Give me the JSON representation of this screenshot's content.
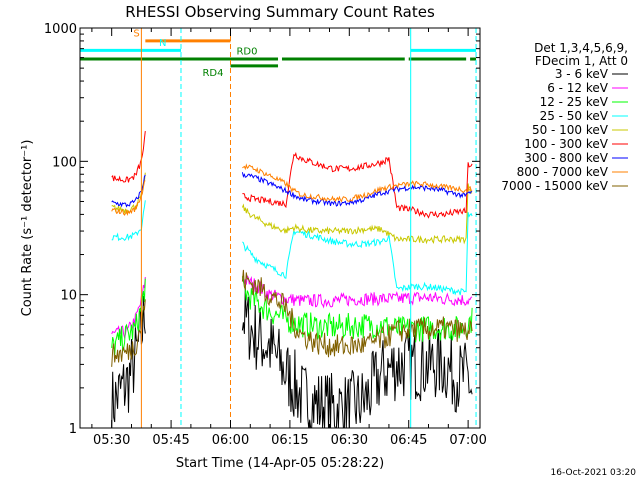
{
  "chart_data": {
    "type": "line",
    "title": "RHESSI Observing Summary Count Rates",
    "xlabel": "Start Time (14-Apr-05 05:28:22)",
    "ylabel": "Count Rate (s⁻¹ detector⁻¹)",
    "yscale": "log",
    "ylim": [
      1,
      1000
    ],
    "xlim_minutes": [
      -8,
      93
    ],
    "x_ticks": [
      {
        "label": "05:30",
        "value": 0
      },
      {
        "label": "05:45",
        "value": 15
      },
      {
        "label": "06:00",
        "value": 30
      },
      {
        "label": "06:15",
        "value": 45
      },
      {
        "label": "06:30",
        "value": 60
      },
      {
        "label": "06:45",
        "value": 75
      },
      {
        "label": "07:00",
        "value": 90
      }
    ],
    "y_ticks": [
      {
        "label": "1",
        "value": 1
      },
      {
        "label": "10",
        "value": 10
      },
      {
        "label": "100",
        "value": 100
      },
      {
        "label": "1000",
        "value": 1000
      }
    ],
    "legend_header": [
      "Det 1,3,4,5,6,9,",
      "FDecim 1, Att 0"
    ],
    "series": [
      {
        "name": "3 - 6 keV",
        "color": "#000000",
        "values": [
          [
            0,
            1.5
          ],
          [
            4,
            2.2
          ],
          [
            6,
            3.3
          ],
          [
            7.5,
            5
          ],
          [
            8.5,
            8
          ],
          [
            33,
            7
          ],
          [
            36,
            5
          ],
          [
            40,
            4
          ],
          [
            44,
            2.6
          ],
          [
            48,
            1.7
          ],
          [
            52,
            1.5
          ],
          [
            56,
            1.4
          ],
          [
            60,
            1.4
          ],
          [
            64,
            1.6
          ],
          [
            68,
            2.5
          ],
          [
            72,
            3
          ],
          [
            76,
            3
          ],
          [
            80,
            3
          ],
          [
            84,
            3
          ],
          [
            86,
            2.6
          ],
          [
            88,
            2.4
          ],
          [
            90,
            2.4
          ],
          [
            91,
            1.8
          ]
        ]
      },
      {
        "name": "6 - 12 keV",
        "color": "#ff00ff",
        "values": [
          [
            0,
            5
          ],
          [
            4,
            5.3
          ],
          [
            6,
            6.5
          ],
          [
            7.5,
            9
          ],
          [
            8.5,
            13
          ],
          [
            33,
            13
          ],
          [
            36,
            12
          ],
          [
            40,
            10
          ],
          [
            44,
            9.3
          ],
          [
            48,
            9
          ],
          [
            52,
            9
          ],
          [
            56,
            9
          ],
          [
            60,
            9.2
          ],
          [
            64,
            9.3
          ],
          [
            68,
            9.3
          ],
          [
            72,
            9.3
          ],
          [
            76,
            9.5
          ],
          [
            80,
            9.5
          ],
          [
            84,
            9.3
          ],
          [
            88,
            9.2
          ],
          [
            91,
            9
          ]
        ]
      },
      {
        "name": "12 - 25 keV",
        "color": "#00ff00",
        "values": [
          [
            0,
            4
          ],
          [
            4,
            5
          ],
          [
            6,
            5.5
          ],
          [
            7.5,
            8
          ],
          [
            8.5,
            12
          ],
          [
            33,
            11
          ],
          [
            36,
            9
          ],
          [
            40,
            7.5
          ],
          [
            44,
            6.5
          ],
          [
            48,
            6
          ],
          [
            52,
            5.8
          ],
          [
            56,
            5.7
          ],
          [
            60,
            5.8
          ],
          [
            64,
            5.9
          ],
          [
            68,
            5.9
          ],
          [
            72,
            5.5
          ],
          [
            76,
            5.5
          ],
          [
            80,
            5.6
          ],
          [
            84,
            5.7
          ],
          [
            88,
            5.5
          ],
          [
            91,
            6.5
          ]
        ]
      },
      {
        "name": "25 - 50 keV",
        "color": "#00ffff",
        "values": [
          [
            0,
            27
          ],
          [
            4,
            27
          ],
          [
            6,
            28
          ],
          [
            7.5,
            32
          ],
          [
            8.5,
            50
          ],
          [
            33,
            24
          ],
          [
            36,
            19
          ],
          [
            40,
            16
          ],
          [
            44,
            14
          ],
          [
            46,
            30
          ],
          [
            48,
            29
          ],
          [
            52,
            27
          ],
          [
            56,
            25
          ],
          [
            60,
            24
          ],
          [
            64,
            24
          ],
          [
            68,
            25
          ],
          [
            70,
            27
          ],
          [
            72,
            11
          ],
          [
            76,
            11.5
          ],
          [
            80,
            11.5
          ],
          [
            84,
            11
          ],
          [
            88,
            10.5
          ],
          [
            89.5,
            10.5
          ],
          [
            90,
            40
          ],
          [
            91,
            38
          ]
        ]
      },
      {
        "name": "50 - 100 keV",
        "color": "#c8c800",
        "values": [
          [
            0,
            45
          ],
          [
            4,
            43
          ],
          [
            6,
            46
          ],
          [
            7.5,
            55
          ],
          [
            8.5,
            80
          ],
          [
            33,
            45
          ],
          [
            36,
            38
          ],
          [
            40,
            33
          ],
          [
            44,
            30
          ],
          [
            46,
            32
          ],
          [
            48,
            31
          ],
          [
            52,
            30
          ],
          [
            56,
            30
          ],
          [
            60,
            30
          ],
          [
            64,
            31
          ],
          [
            68,
            31
          ],
          [
            72,
            26
          ],
          [
            76,
            26
          ],
          [
            80,
            26
          ],
          [
            84,
            26
          ],
          [
            88,
            26
          ],
          [
            89.5,
            26
          ],
          [
            90,
            65
          ],
          [
            91,
            60
          ]
        ]
      },
      {
        "name": "100 - 300 keV",
        "color": "#ff0000",
        "values": [
          [
            0,
            75
          ],
          [
            4,
            72
          ],
          [
            6,
            78
          ],
          [
            7.5,
            100
          ],
          [
            8.5,
            160
          ],
          [
            33,
            55
          ],
          [
            36,
            52
          ],
          [
            40,
            50
          ],
          [
            44,
            48
          ],
          [
            46,
            115
          ],
          [
            48,
            105
          ],
          [
            52,
            95
          ],
          [
            56,
            88
          ],
          [
            60,
            88
          ],
          [
            64,
            92
          ],
          [
            68,
            98
          ],
          [
            70,
            105
          ],
          [
            72,
            45
          ],
          [
            76,
            43
          ],
          [
            80,
            40
          ],
          [
            84,
            40
          ],
          [
            88,
            42
          ],
          [
            89.5,
            42
          ],
          [
            90,
            95
          ],
          [
            91,
            92
          ]
        ]
      },
      {
        "name": "300 - 800 keV",
        "color": "#0000ff",
        "values": [
          [
            0,
            49
          ],
          [
            4,
            47
          ],
          [
            6,
            50
          ],
          [
            7.5,
            60
          ],
          [
            8.5,
            80
          ],
          [
            33,
            80
          ],
          [
            36,
            76
          ],
          [
            40,
            68
          ],
          [
            44,
            60
          ],
          [
            46,
            56
          ],
          [
            48,
            52
          ],
          [
            52,
            50
          ],
          [
            56,
            48
          ],
          [
            60,
            49
          ],
          [
            64,
            52
          ],
          [
            68,
            58
          ],
          [
            72,
            62
          ],
          [
            76,
            64
          ],
          [
            80,
            63
          ],
          [
            84,
            60
          ],
          [
            88,
            56
          ],
          [
            89.5,
            55
          ],
          [
            90,
            58
          ],
          [
            91,
            58
          ]
        ]
      },
      {
        "name": "800 - 7000 keV",
        "color": "#ff8000",
        "values": [
          [
            0,
            43
          ],
          [
            4,
            41
          ],
          [
            6,
            44
          ],
          [
            7.5,
            55
          ],
          [
            8.5,
            75
          ],
          [
            33,
            92
          ],
          [
            36,
            88
          ],
          [
            40,
            78
          ],
          [
            44,
            68
          ],
          [
            46,
            60
          ],
          [
            48,
            56
          ],
          [
            52,
            54
          ],
          [
            56,
            52
          ],
          [
            60,
            52
          ],
          [
            64,
            56
          ],
          [
            68,
            62
          ],
          [
            72,
            66
          ],
          [
            76,
            68
          ],
          [
            80,
            67
          ],
          [
            84,
            64
          ],
          [
            88,
            62
          ],
          [
            89.5,
            60
          ],
          [
            90,
            62
          ],
          [
            91,
            62
          ]
        ]
      },
      {
        "name": "7000 - 15000 keV",
        "color": "#806000",
        "values": [
          [
            0,
            3.5
          ],
          [
            4,
            3.7
          ],
          [
            6,
            4.2
          ],
          [
            7.5,
            6
          ],
          [
            8.5,
            9
          ],
          [
            33,
            13
          ],
          [
            36,
            12
          ],
          [
            40,
            10
          ],
          [
            44,
            8
          ],
          [
            46,
            6
          ],
          [
            48,
            5
          ],
          [
            52,
            4.3
          ],
          [
            56,
            4.1
          ],
          [
            60,
            4.1
          ],
          [
            64,
            4.2
          ],
          [
            68,
            4.6
          ],
          [
            72,
            5.3
          ],
          [
            76,
            5.5
          ],
          [
            80,
            5.5
          ],
          [
            84,
            5.6
          ],
          [
            88,
            5.4
          ],
          [
            91,
            5.2
          ]
        ]
      }
    ],
    "status_bars": [
      {
        "label": "S",
        "color": "#ff8000",
        "segments": [
          [
            8.5,
            30
          ]
        ],
        "level": 800
      },
      {
        "label": "N",
        "color": "#00ffff",
        "segments": [
          [
            -8,
            17.5
          ],
          [
            75.5,
            92
          ]
        ],
        "level": 680
      },
      {
        "label": "RD0",
        "color": "#008000",
        "segments": [
          [
            -8,
            30
          ],
          [
            30,
            42
          ],
          [
            43,
            74
          ],
          [
            75,
            89.5
          ],
          [
            90.5,
            92
          ]
        ],
        "level": 585
      },
      {
        "label": "RD4",
        "color": "#008000",
        "segments": [
          [
            30,
            42
          ]
        ],
        "level": 520
      }
    ],
    "vertical_lines": [
      {
        "x": -8,
        "color": "#00ffff",
        "style": "solid"
      },
      {
        "x": 7.5,
        "color": "#ff8000",
        "style": "solid"
      },
      {
        "x": 17.5,
        "color": "#00ffff",
        "style": "dashed"
      },
      {
        "x": 30,
        "color": "#ff8000",
        "style": "dashed"
      },
      {
        "x": 75.5,
        "color": "#00ffff",
        "style": "solid"
      },
      {
        "x": 92,
        "color": "#00ffff",
        "style": "dashed"
      }
    ],
    "data_gaps_minutes": [
      [
        8.5,
        33
      ]
    ],
    "timestamp": "16-Oct-2021 03:20"
  }
}
